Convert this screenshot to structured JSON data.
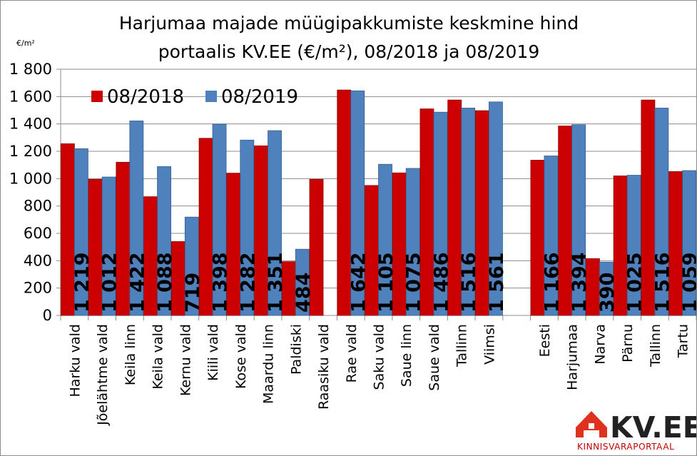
{
  "chart_data": {
    "type": "bar",
    "title_lines": [
      "Harjumaa majade müügipakkumiste keskmine hind",
      "portaalis KV.EE (€/m²), 08/2018 ja 08/2019"
    ],
    "unit_label": "€/m²",
    "ylim": [
      0,
      1800
    ],
    "yticks": [
      "0",
      "200",
      "400",
      "600",
      "800",
      "1 000",
      "1 200",
      "1 400",
      "1 600",
      "1 800"
    ],
    "grid": true,
    "legend_position": "top-left",
    "categories": [
      "Harku vald",
      "Jõelähtme vald",
      "Keila linn",
      "Keila vald",
      "Kernu vald",
      "Kiili vald",
      "Kose vald",
      "Maardu linn",
      "Paldiski",
      "Raasiku vald",
      "Rae vald",
      "Saku vald",
      "Saue linn",
      "Saue vald",
      "Tallinn",
      "Viimsi",
      "",
      "Eesti",
      "Harjumaa",
      "Narva",
      "Pärnu",
      "Tallinn",
      "Tartu"
    ],
    "series": [
      {
        "name": "08/2018",
        "color": "#cc0000",
        "values": [
          1255,
          995,
          1120,
          868,
          540,
          1295,
          1040,
          1240,
          393,
          995,
          1648,
          950,
          1042,
          1510,
          1575,
          1497,
          null,
          1135,
          1385,
          415,
          1020,
          1575,
          1052
        ]
      },
      {
        "name": "08/2019",
        "color": "#4f81bd",
        "values": [
          1219,
          1012,
          1422,
          1088,
          719,
          1398,
          1282,
          1351,
          484,
          null,
          1642,
          1105,
          1075,
          1486,
          1516,
          1561,
          null,
          1166,
          1394,
          390,
          1025,
          1516,
          1059
        ]
      }
    ],
    "data_labels": [
      "1 219",
      "1 012",
      "1 422",
      "1 088",
      "719",
      "1 398",
      "1 282",
      "1 351",
      "484",
      "",
      "1 642",
      "1 105",
      "1 075",
      "1 486",
      "1 516",
      "1 561",
      "",
      "1 166",
      "1 394",
      "390",
      "1 025",
      "1 516",
      "1 059"
    ]
  },
  "logo": {
    "brand": "KV.EE",
    "tagline": "KINNISVARAPORTAAL",
    "accent_color": "#e0301e",
    "icon": "house-icon"
  }
}
